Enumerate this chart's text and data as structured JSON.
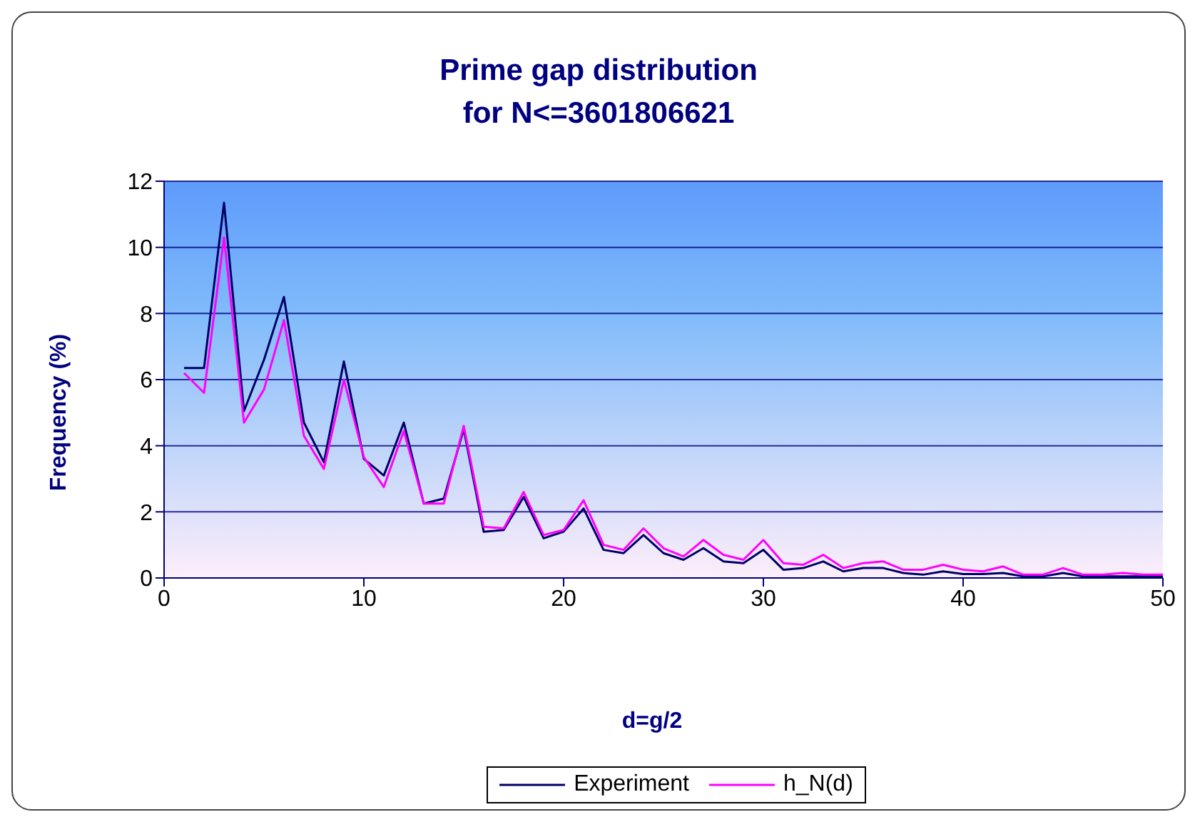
{
  "chart_data": {
    "type": "line",
    "title": "Prime gap distribution\nfor N<=3601806621",
    "xlabel": "d=g/2",
    "ylabel": "Frequency (%)",
    "x": [
      1,
      2,
      3,
      4,
      5,
      6,
      7,
      8,
      9,
      10,
      11,
      12,
      13,
      14,
      15,
      16,
      17,
      18,
      19,
      20,
      21,
      22,
      23,
      24,
      25,
      26,
      27,
      28,
      29,
      30,
      31,
      32,
      33,
      34,
      35,
      36,
      37,
      38,
      39,
      40,
      41,
      42,
      43,
      44,
      45,
      46,
      47,
      48,
      49,
      50
    ],
    "series": [
      {
        "name": "Experiment",
        "color": "#000066",
        "values": [
          6.35,
          6.35,
          11.35,
          5.05,
          6.6,
          8.5,
          4.7,
          3.5,
          6.55,
          3.6,
          3.1,
          4.7,
          2.25,
          2.4,
          4.5,
          1.4,
          1.45,
          2.45,
          1.2,
          1.4,
          2.1,
          0.85,
          0.75,
          1.3,
          0.75,
          0.55,
          0.9,
          0.5,
          0.45,
          0.85,
          0.25,
          0.3,
          0.5,
          0.2,
          0.3,
          0.3,
          0.15,
          0.1,
          0.2,
          0.12,
          0.12,
          0.15,
          0.05,
          0.05,
          0.15,
          0.05,
          0.05,
          0.05,
          0.05,
          0.05
        ]
      },
      {
        "name": "h_N(d)",
        "color": "#ff00ff",
        "values": [
          6.2,
          5.6,
          10.3,
          4.7,
          5.7,
          7.8,
          4.3,
          3.3,
          6.0,
          3.65,
          2.75,
          4.45,
          2.25,
          2.25,
          4.6,
          1.55,
          1.5,
          2.6,
          1.3,
          1.45,
          2.35,
          1.0,
          0.85,
          1.5,
          0.9,
          0.65,
          1.15,
          0.7,
          0.55,
          1.15,
          0.45,
          0.4,
          0.7,
          0.3,
          0.45,
          0.5,
          0.25,
          0.25,
          0.4,
          0.25,
          0.2,
          0.35,
          0.1,
          0.1,
          0.3,
          0.1,
          0.1,
          0.15,
          0.1,
          0.1
        ]
      }
    ],
    "xlim": [
      0,
      50
    ],
    "xticks": [
      0,
      10,
      20,
      30,
      40,
      50
    ],
    "ylim": [
      0,
      12
    ],
    "yticks": [
      0,
      2,
      4,
      6,
      8,
      10,
      12
    ],
    "grid": "y",
    "legend": "bottom",
    "marker": "none",
    "line_style": "solid"
  }
}
